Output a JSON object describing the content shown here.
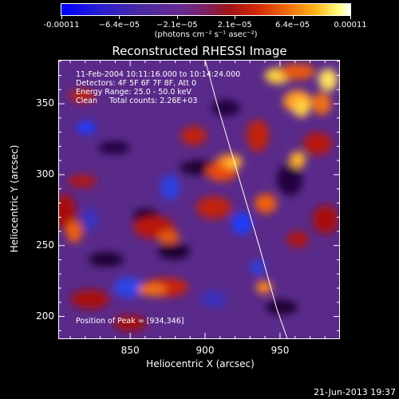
{
  "colorbar": {
    "tick_labels": [
      "-0.00011",
      "−6.4e−05",
      "−2.1e−05",
      "2.1e−05",
      "6.4e−05",
      "0.00011"
    ],
    "units": "(photons cm⁻² s⁻¹ asec⁻²)"
  },
  "chart_data": {
    "type": "heatmap",
    "title": "Reconstructed RHESSI Image",
    "xlabel": "Heliocentric X (arcsec)",
    "ylabel": "Heliocentric Y (arcsec)",
    "xlim": [
      802,
      990
    ],
    "ylim": [
      184,
      381
    ],
    "x_ticks": [
      850,
      900,
      950
    ],
    "y_ticks": [
      200,
      250,
      300,
      350
    ],
    "colorbar_range": [
      -0.00011,
      0.00011
    ],
    "limb_curve": {
      "x": [
        900,
        908,
        922,
        936,
        948,
        955
      ],
      "y": [
        381,
        350,
        300,
        250,
        205,
        184
      ]
    },
    "annotations": {
      "time": "11-Feb-2004 10:11:16.000 to 10:14:24.000",
      "detectors": "Detectors: 4F 5F 6F 7F 8F, Att 0",
      "energy": "Energy Range: 25.0 - 50.0 keV",
      "clean": "Clean     Total counts: 2.26E+03",
      "peak": "Position of Peak = [934,346]"
    }
  },
  "footer": {
    "timestamp": "21-Jun-2013 19:37"
  }
}
